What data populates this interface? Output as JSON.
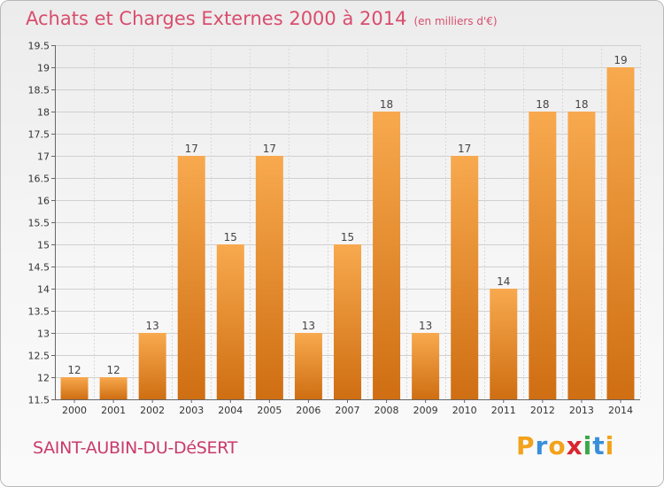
{
  "title": "Achats et Charges Externes 2000 à 2014",
  "subtitle": "(en milliers d'€)",
  "commune": "SAINT-AUBIN-DU-DéSERT",
  "logo": {
    "text": "Proxiti",
    "letters": [
      "P",
      "r",
      "o",
      "x",
      "i",
      "t",
      "i"
    ],
    "colors": [
      "#f2a21b",
      "#3a8fd9",
      "#f2a21b",
      "#d9262e",
      "#3aa84a",
      "#3a8fd9",
      "#f2a21b"
    ]
  },
  "colors": {
    "bar_light": "#f8a94e",
    "bar_dark": "#cf6e12",
    "title": "#d94d6d"
  },
  "chart_data": {
    "type": "bar",
    "title": "Achats et Charges Externes 2000 à 2014",
    "subtitle": "(en milliers d'€)",
    "categories": [
      "2000",
      "2001",
      "2002",
      "2003",
      "2004",
      "2005",
      "2006",
      "2007",
      "2008",
      "2009",
      "2010",
      "2011",
      "2012",
      "2013",
      "2014"
    ],
    "values": [
      12,
      12,
      13,
      17,
      15,
      17,
      13,
      15,
      18,
      13,
      17,
      14,
      18,
      18,
      19
    ],
    "value_labels": [
      "12",
      "12",
      "13",
      "17",
      "15",
      "17",
      "13",
      "15",
      "18",
      "13",
      "17",
      "14",
      "18",
      "18",
      "19"
    ],
    "ylim": [
      11.5,
      19.5
    ],
    "yticks": [
      11.5,
      12,
      12.5,
      13,
      13.5,
      14,
      14.5,
      15,
      15.5,
      16,
      16.5,
      17,
      17.5,
      18,
      18.5,
      19,
      19.5
    ],
    "ytick_labels": [
      "11.5",
      "12",
      "12.5",
      "13",
      "13.5",
      "14",
      "14.5",
      "15",
      "15.5",
      "16",
      "16.5",
      "17",
      "17.5",
      "18",
      "18.5",
      "19",
      "19.5"
    ],
    "grid": true,
    "legend": "none"
  }
}
